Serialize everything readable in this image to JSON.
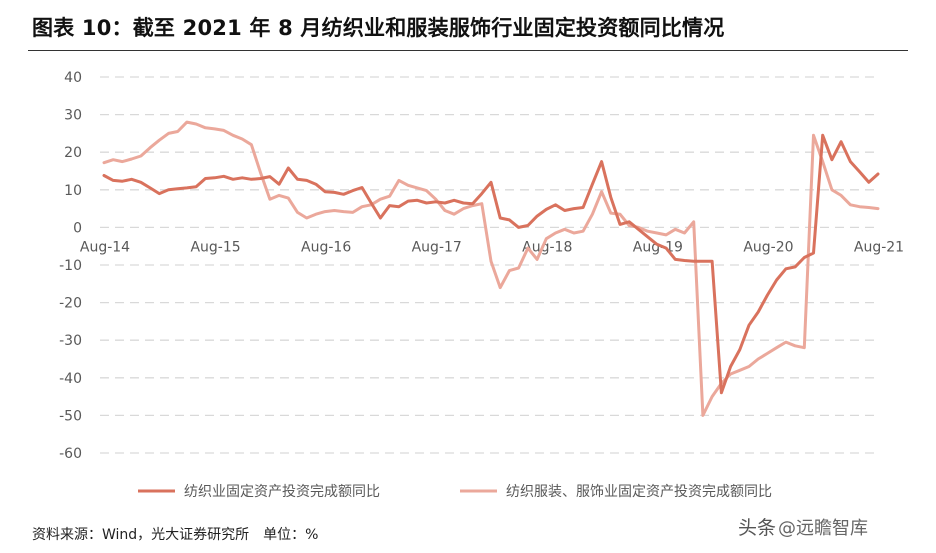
{
  "title": "图表 10：截至 2021 年 8 月纺织业和服装服饰行业固定投资额同比情况",
  "source": "资料来源：Wind，光大证券研究所　单位：%",
  "watermark": {
    "brand": "头条",
    "handle": "@远瞻智库"
  },
  "colors": {
    "series1": "#d9725d",
    "series2": "#eba89b",
    "grid": "#d9d9d9",
    "axis_text": "#595959"
  },
  "chart_data": {
    "type": "line",
    "ylim": [
      -60,
      40
    ],
    "yticks": [
      40,
      30,
      20,
      10,
      0,
      -10,
      -20,
      -30,
      -40,
      -50,
      -60
    ],
    "x_tick_labels": [
      "Aug-14",
      "Aug-15",
      "Aug-16",
      "Aug-17",
      "Aug-18",
      "Aug-19",
      "Aug-20",
      "Aug-21"
    ],
    "x_start": "2014-08",
    "x_end": "2021-08",
    "grid": "horizontal dashed",
    "legend_position": "bottom",
    "series": [
      {
        "name": "纺织业固定资产投资完成额同比",
        "values": [
          13.8,
          12.5,
          12.3,
          12.8,
          12.0,
          10.5,
          9.0,
          10.0,
          10.3,
          10.5,
          10.8,
          13.0,
          13.2,
          13.6,
          12.8,
          13.2,
          12.8,
          13.0,
          13.5,
          11.5,
          15.8,
          12.8,
          12.5,
          11.5,
          9.5,
          9.3,
          8.8,
          9.8,
          10.6,
          6.5,
          2.5,
          5.8,
          5.5,
          7.0,
          7.2,
          6.5,
          6.8,
          6.5,
          7.2,
          6.5,
          6.3,
          9.0,
          12.0,
          2.5,
          2.0,
          0.0,
          0.5,
          3.0,
          4.8,
          6.0,
          4.5,
          5.0,
          5.3,
          11.5,
          17.5,
          8.0,
          0.8,
          1.5,
          -0.5,
          -2.5,
          -4.5,
          -5.5,
          -8.5,
          -8.8,
          -9.0,
          -9.0,
          -9.0,
          -44.0,
          -37.0,
          -32.5,
          -26.0,
          -22.5,
          -18.0,
          -14.0,
          -11.0,
          -10.5,
          -8.0,
          -6.8,
          24.5,
          18.0,
          22.8,
          17.5,
          14.8,
          12.0,
          14.2
        ]
      },
      {
        "name": "纺织服装、服饰业固定资产投资完成额同比",
        "values": [
          17.2,
          18.0,
          17.5,
          18.2,
          19.0,
          21.2,
          23.2,
          25.0,
          25.5,
          28.0,
          27.5,
          26.5,
          26.2,
          25.8,
          24.5,
          23.5,
          22.0,
          14.5,
          7.5,
          8.5,
          7.8,
          4.0,
          2.5,
          3.5,
          4.2,
          4.5,
          4.2,
          4.0,
          5.5,
          6.0,
          7.5,
          8.3,
          12.5,
          11.2,
          10.5,
          9.8,
          7.5,
          4.5,
          3.5,
          5.0,
          5.8,
          6.3,
          -9.0,
          -16.0,
          -11.5,
          -10.8,
          -5.5,
          -8.5,
          -3.0,
          -1.5,
          -0.5,
          -1.5,
          -1.0,
          3.5,
          9.5,
          3.8,
          3.5,
          0.5,
          0.0,
          -1.0,
          -1.5,
          -2.0,
          -0.5,
          -1.5,
          1.5,
          -50.0,
          -45.0,
          -41.5,
          -39.0,
          -38.0,
          -37.0,
          -35.0,
          -33.5,
          -32.0,
          -30.5,
          -31.5,
          -32.0,
          24.5,
          17.5,
          10.0,
          8.5,
          6.0,
          5.5,
          5.3,
          5.0
        ]
      }
    ]
  }
}
